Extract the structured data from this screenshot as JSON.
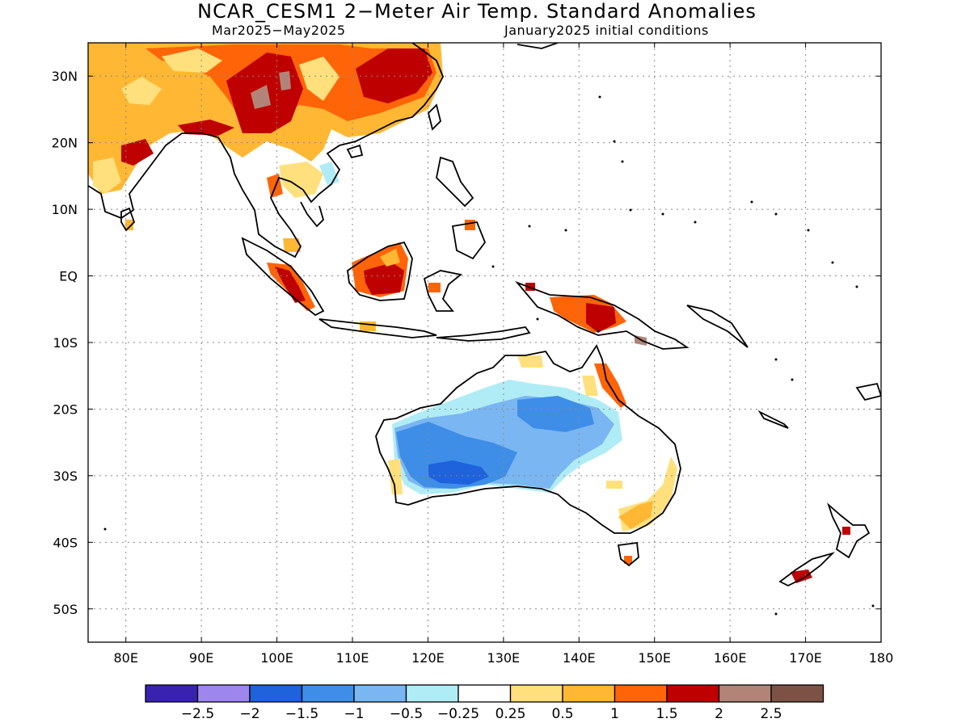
{
  "title": "NCAR_CESM1 2−Meter Air Temp. Standard Anomalies",
  "subtitle_left": "Mar2025−May2025",
  "subtitle_right": "January2025 initial conditions",
  "map": {
    "lon_range": [
      75,
      180
    ],
    "lat_range": [
      -55,
      35
    ],
    "lat_ticks": [
      {
        "value": 30,
        "label": "30N"
      },
      {
        "value": 20,
        "label": "20N"
      },
      {
        "value": 10,
        "label": "10N"
      },
      {
        "value": 0,
        "label": "EQ"
      },
      {
        "value": -10,
        "label": "10S"
      },
      {
        "value": -20,
        "label": "20S"
      },
      {
        "value": -30,
        "label": "30S"
      },
      {
        "value": -40,
        "label": "40S"
      },
      {
        "value": -50,
        "label": "50S"
      }
    ],
    "lon_ticks": [
      {
        "value": 80,
        "label": "80E"
      },
      {
        "value": 90,
        "label": "90E"
      },
      {
        "value": 100,
        "label": "100E"
      },
      {
        "value": 110,
        "label": "110E"
      },
      {
        "value": 120,
        "label": "120E"
      },
      {
        "value": 130,
        "label": "130E"
      },
      {
        "value": 140,
        "label": "140E"
      },
      {
        "value": 150,
        "label": "150E"
      },
      {
        "value": 160,
        "label": "160E"
      },
      {
        "value": 170,
        "label": "170E"
      },
      {
        "value": 180,
        "label": "180"
      }
    ]
  },
  "colorbar": {
    "colors": [
      "#3a22b0",
      "#9d87ee",
      "#1e62dc",
      "#3e8ee8",
      "#7ab6f2",
      "#b0ecf6",
      "#ffffff",
      "#ffe07c",
      "#ffb734",
      "#ff6408",
      "#bf0000",
      "#b28478",
      "#7c5244"
    ],
    "labels": [
      "−2.5",
      "−2",
      "−1.5",
      "−1",
      "−0.5",
      "−0.25",
      "0.25",
      "0.5",
      "1",
      "1.5",
      "2",
      "2.5"
    ]
  }
}
